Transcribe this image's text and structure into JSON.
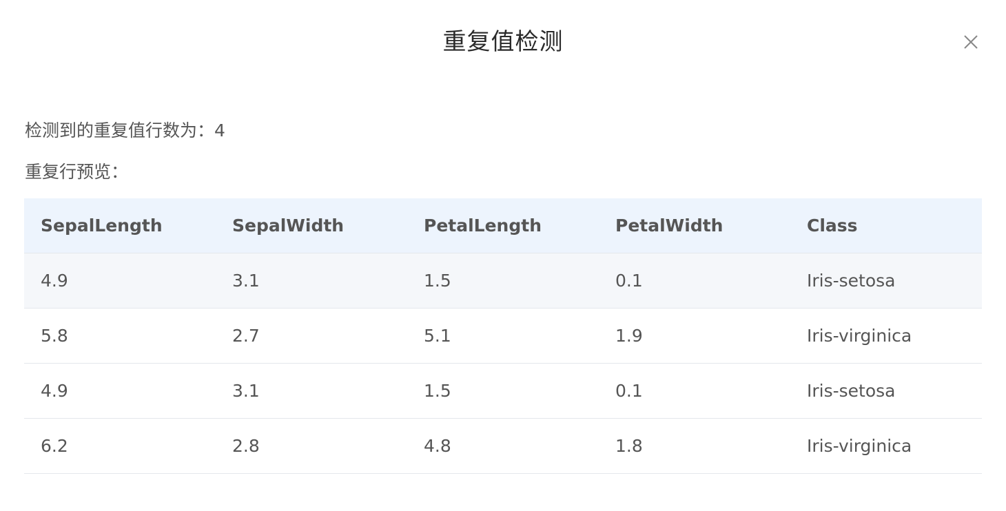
{
  "dialog": {
    "title": "重复值检测",
    "summary_text": "检测到的重复值行数为：4",
    "preview_label": "重复行预览："
  },
  "icons": {
    "close": "close-icon"
  },
  "table": {
    "columns": [
      "SepalLength",
      "SepalWidth",
      "PetalLength",
      "PetalWidth",
      "Class"
    ],
    "rows": [
      [
        "4.9",
        "3.1",
        "1.5",
        "0.1",
        "Iris-setosa"
      ],
      [
        "5.8",
        "2.7",
        "5.1",
        "1.9",
        "Iris-virginica"
      ],
      [
        "4.9",
        "3.1",
        "1.5",
        "0.1",
        "Iris-setosa"
      ],
      [
        "6.2",
        "2.8",
        "4.8",
        "1.8",
        "Iris-virginica"
      ]
    ]
  },
  "colors": {
    "header_bg": "#edf4fd",
    "hover_row_bg": "#f5f7fa",
    "border": "#e4e7ec"
  }
}
